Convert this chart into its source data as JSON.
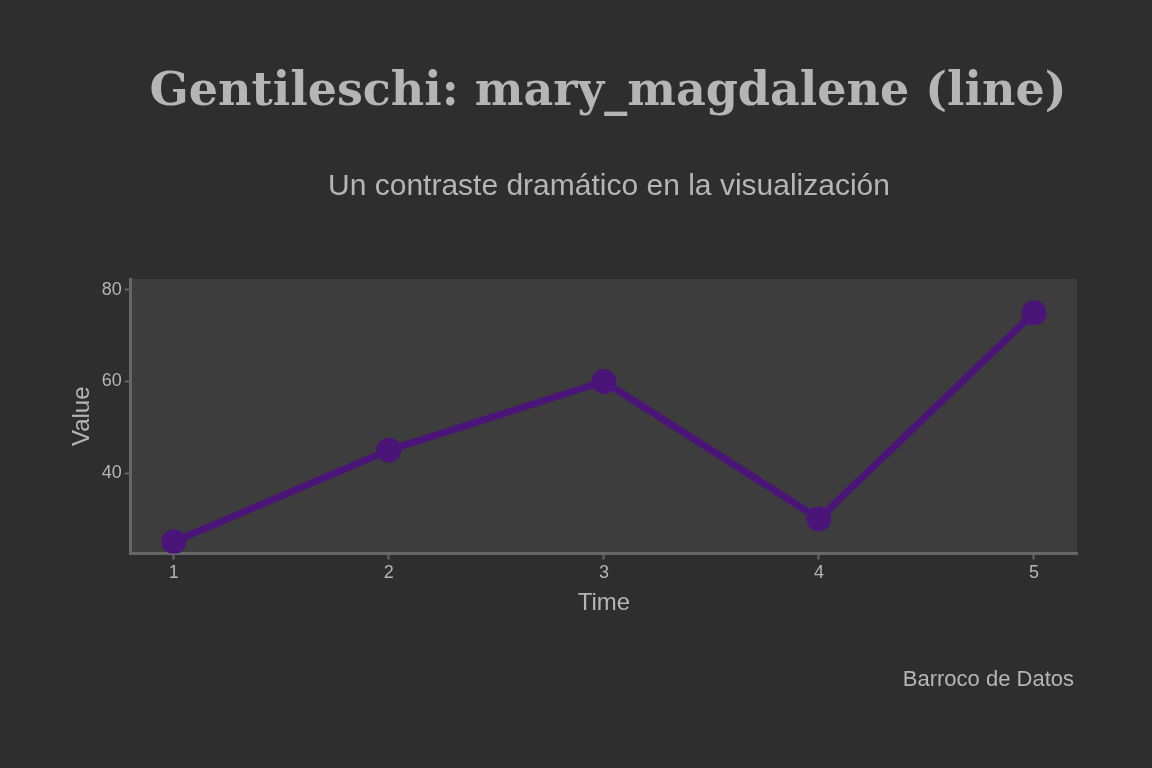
{
  "chart_data": {
    "type": "line",
    "title": "Gentileschi: mary_magdalene (line)",
    "subtitle": "Un contraste dramático en la visualización",
    "xlabel": "Time",
    "ylabel": "Value",
    "annotations": [
      "Barroco de Datos"
    ],
    "x": [
      1,
      2,
      3,
      4,
      5
    ],
    "series": [
      {
        "color": "#4b1478",
        "values": [
          25,
          45,
          60,
          30,
          75
        ]
      }
    ],
    "xlim": [
      0.8,
      5.2
    ],
    "xticks": [
      1,
      2,
      3,
      4,
      5
    ],
    "ylim": [
      22.4,
      82.4
    ],
    "yticks": [
      40,
      60,
      80
    ],
    "grid": false,
    "legend": false,
    "marker": "circle",
    "line_style": "solid"
  }
}
